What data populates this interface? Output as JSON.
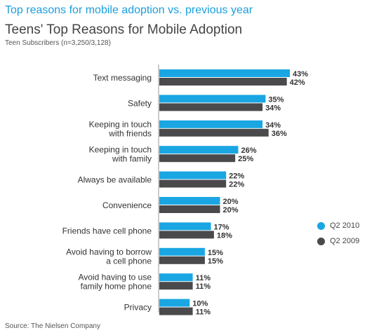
{
  "header": {
    "top_title": "Top reasons for mobile adoption vs. previous year",
    "title": "Teens' Top Reasons for Mobile Adoption",
    "subtitle": "Teen Subscribers (n=3,250/3,128)"
  },
  "source": "Source: The Nielsen Company",
  "colors": {
    "q2_2010": "#1aa6e2",
    "q2_2009": "#4a4a4d",
    "axis": "#999999",
    "text": "#333333"
  },
  "chart_data": {
    "type": "bar",
    "orientation": "horizontal",
    "title": "Teens' Top Reasons for Mobile Adoption",
    "subtitle": "Teen Subscribers (n=3,250/3,128)",
    "categories": [
      [
        "Text messaging"
      ],
      [
        "Safety"
      ],
      [
        "Keeping in touch",
        "with friends"
      ],
      [
        "Keeping in touch",
        "with family"
      ],
      [
        "Always be available"
      ],
      [
        "Convenience"
      ],
      [
        "Friends have cell phone"
      ],
      [
        "Avoid having to borrow",
        "a cell phone"
      ],
      [
        "Avoid having to use",
        "family home phone"
      ],
      [
        "Privacy"
      ]
    ],
    "series": [
      {
        "name": "Q2 2010",
        "values": [
          43,
          35,
          34,
          26,
          22,
          20,
          17,
          15,
          11,
          10
        ],
        "labels": [
          "43%",
          "35%",
          "34%",
          "26%",
          "22%",
          "20%",
          "17%",
          "15%",
          "11%",
          "10%"
        ]
      },
      {
        "name": "Q2 2009",
        "values": [
          42,
          34,
          36,
          25,
          22,
          20,
          18,
          15,
          11,
          11
        ],
        "labels": [
          "42%",
          "34%",
          "36%",
          "25%",
          "22%",
          "20%",
          "18%",
          "15%",
          "11%",
          "11%"
        ]
      }
    ],
    "xlim": [
      0,
      43
    ],
    "value_unit": "%",
    "grid": false,
    "legend_position": "right"
  }
}
